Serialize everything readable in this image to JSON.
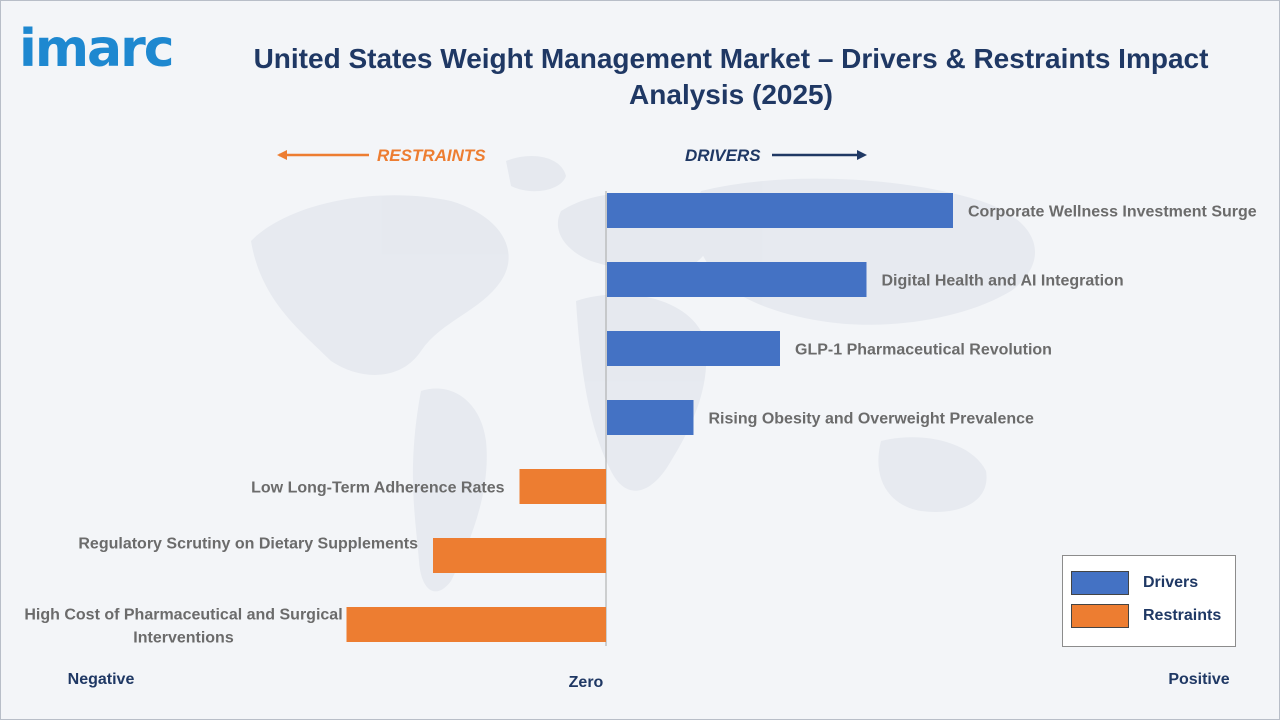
{
  "brand": {
    "logo_text": "imarc"
  },
  "title": "United States Weight Management Market – Drivers & Restraints Impact Analysis (2025)",
  "headers": {
    "restraints": "RESTRAINTS",
    "drivers": "DRIVERS"
  },
  "axis_words": {
    "negative": "Negative",
    "zero": "Zero",
    "positive": "Positive"
  },
  "legend": [
    {
      "label": "Drivers",
      "color": "#4472c4"
    },
    {
      "label": "Restraints",
      "color": "#ed7d31"
    }
  ],
  "colors": {
    "drivers": "#4472c4",
    "restraints": "#ed7d31",
    "title": "#1f3864",
    "logo": "#1e88d0"
  },
  "chart_data": {
    "type": "bar",
    "orientation": "horizontal",
    "title": "United States Weight Management Market – Drivers & Restraints Impact Analysis (2025)",
    "xlim": [
      -3,
      4
    ],
    "grid": false,
    "legend_position": "bottom-right",
    "categories": [
      "Corporate Wellness Investment Surge",
      "Digital Health and AI Integration",
      "GLP-1 Pharmaceutical Revolution",
      "Rising Obesity and Overweight Prevalence",
      "Low Long-Term Adherence Rates",
      "Regulatory Scrutiny on Dietary Supplements",
      "High Cost of Pharmaceutical and Surgical Interventions"
    ],
    "values": [
      4,
      3,
      2,
      1,
      -1,
      -2,
      -3
    ],
    "series": [
      {
        "name": "Drivers",
        "values": [
          4,
          3,
          2,
          1,
          null,
          null,
          null
        ]
      },
      {
        "name": "Restraints",
        "values": [
          null,
          null,
          null,
          null,
          -1,
          -2,
          -3
        ]
      }
    ]
  }
}
